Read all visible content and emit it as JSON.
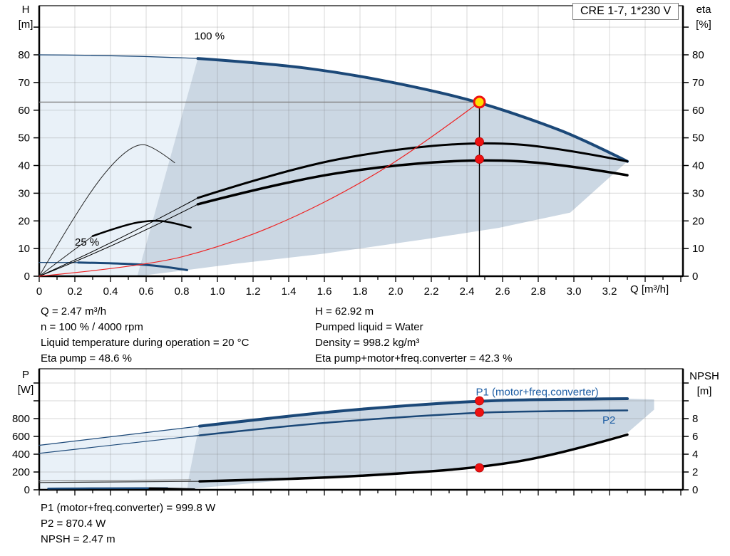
{
  "title": "CRE 1-7, 1*230 V",
  "colors": {
    "blue": "#1b4878",
    "label_blue": "#1f5fa5",
    "red": "#ee1111",
    "duty_fill": "#ffdf00",
    "region_light": "#e9f1f8",
    "region_dark": "#cbd7e3",
    "grid": "rgba(110,110,110,0.22)",
    "ref_gray": "#808080"
  },
  "axes": {
    "top_left": [
      "H",
      "[m]"
    ],
    "top_right": [
      "eta",
      "[%]"
    ],
    "bottom_left": [
      "P",
      "[W]"
    ],
    "bottom_right": [
      "NPSH",
      "[m]"
    ],
    "x_label": "Q [m³/h]"
  },
  "info_top_left": [
    "Q = 2.47 m³/h",
    "n = 100 % / 4000 rpm",
    "Liquid temperature during operation = 20 °C",
    "Eta pump = 48.6 %"
  ],
  "info_top_right": [
    "H = 62.92 m",
    "Pumped liquid = Water",
    "Density = 998.2 kg/m³",
    "Eta pump+motor+freq.converter = 42.3 %"
  ],
  "info_bottom": [
    "P1 (motor+freq.converter) = 999.8 W",
    "P2 = 870.4 W",
    "NPSH = 2.47 m"
  ],
  "chart_data": [
    {
      "type": "line",
      "title": "CRE 1-7, 1*230 V",
      "xlabel": "Q [m³/h]",
      "ylabel_left": "H [m]",
      "ylabel_right": "eta [%]",
      "xlim": [
        0,
        3.6
      ],
      "ylim_left": [
        0,
        97
      ],
      "ylim_right": [
        0,
        97
      ],
      "show_x_labels": true,
      "x_tick_labels": [
        "0",
        "0.2",
        "0.4",
        "0.6",
        "0.8",
        "1.0",
        "1.2",
        "1.4",
        "1.6",
        "1.8",
        "2.0",
        "2.2",
        "2.4",
        "2.6",
        "2.8",
        "3.0",
        "3.2"
      ],
      "left_ticks": [
        [
          0,
          "0"
        ],
        [
          10,
          "10"
        ],
        [
          20,
          "20"
        ],
        [
          30,
          "30"
        ],
        [
          40,
          "40"
        ],
        [
          50,
          "50"
        ],
        [
          60,
          "60"
        ],
        [
          70,
          "70"
        ],
        [
          80,
          "80"
        ],
        [
          90,
          ""
        ]
      ],
      "right_ticks": [
        [
          0,
          "0"
        ],
        [
          10,
          "10"
        ],
        [
          20,
          "20"
        ],
        [
          30,
          "30"
        ],
        [
          40,
          "40"
        ],
        [
          50,
          "50"
        ],
        [
          60,
          "60"
        ],
        [
          70,
          "70"
        ],
        [
          80,
          "80"
        ],
        [
          90,
          ""
        ]
      ],
      "duty_point": {
        "Q": 2.47,
        "H": 62.92,
        "eta_pump": 48.6,
        "eta_total": 42.3,
        "speed_pct": 100,
        "rpm": 4000
      },
      "regions": [
        {
          "name": "envelope-light",
          "color": "#e9f1f8",
          "axis": "left",
          "points": [
            [
              0,
              80
            ],
            [
              0.45,
              79.9
            ],
            [
              0.89,
              78.7
            ],
            [
              0.55,
              0
            ],
            [
              0,
              0
            ]
          ]
        },
        {
          "name": "envelope-dark",
          "color": "#cbd7e3",
          "axis": "left",
          "points": [
            [
              0.89,
              78.7
            ],
            [
              1.3,
              76.8
            ],
            [
              1.7,
              73.5
            ],
            [
              2.1,
              68.6
            ],
            [
              2.47,
              62.92
            ],
            [
              2.8,
              55.8
            ],
            [
              3.05,
              49.5
            ],
            [
              3.3,
              41.5
            ],
            [
              2.98,
              23
            ],
            [
              2.58,
              17.5
            ],
            [
              2.18,
              13.5
            ],
            [
              1.58,
              8
            ],
            [
              1.1,
              4.5
            ],
            [
              0.8,
              2
            ],
            [
              0.55,
              0
            ]
          ]
        }
      ],
      "series": [
        {
          "name": "qh-100-thin",
          "color": "#1b4878",
          "width": 1.3,
          "axis": "left",
          "points": [
            [
              0,
              80
            ],
            [
              0.45,
              79.9
            ],
            [
              0.89,
              78.7
            ]
          ]
        },
        {
          "name": "qh-100",
          "color": "#1b4878",
          "width": 4,
          "axis": "left",
          "points": [
            [
              0.89,
              78.7
            ],
            [
              1.3,
              76.8
            ],
            [
              1.7,
              73.5
            ],
            [
              2.1,
              68.6
            ],
            [
              2.47,
              62.92
            ],
            [
              2.8,
              55.8
            ],
            [
              3.05,
              49.5
            ],
            [
              3.3,
              41.5
            ]
          ]
        },
        {
          "name": "qh-25-thin",
          "color": "#1b4878",
          "width": 1.3,
          "axis": "left",
          "points": [
            [
              0,
              5.0
            ],
            [
              0.22,
              4.95
            ]
          ]
        },
        {
          "name": "qh-25",
          "color": "#1b4878",
          "width": 3,
          "axis": "left",
          "points": [
            [
              0.22,
              4.95
            ],
            [
              0.5,
              4.55
            ],
            [
              0.7,
              3.6
            ],
            [
              0.83,
              2.2
            ]
          ]
        },
        {
          "name": "eta-pump-thin",
          "color": "#000000",
          "width": 1,
          "axis": "right",
          "points": [
            [
              0,
              0
            ],
            [
              0.45,
              13
            ],
            [
              0.89,
              28.3
            ]
          ]
        },
        {
          "name": "eta-pump",
          "color": "#000000",
          "width": 3,
          "axis": "right",
          "points": [
            [
              0.89,
              28.3
            ],
            [
              1.4,
              38.8
            ],
            [
              1.95,
              45.6
            ],
            [
              2.47,
              48.6
            ],
            [
              2.9,
              46.6
            ],
            [
              3.3,
              41.5
            ]
          ]
        },
        {
          "name": "eta-total-thin",
          "color": "#000000",
          "width": 1,
          "axis": "right",
          "points": [
            [
              0,
              0
            ],
            [
              0.45,
              11.5
            ],
            [
              0.89,
              26
            ]
          ]
        },
        {
          "name": "eta-total",
          "color": "#000000",
          "width": 3.5,
          "axis": "right",
          "points": [
            [
              0.89,
              26
            ],
            [
              1.4,
              34.5
            ],
            [
              1.95,
              40
            ],
            [
              2.47,
              42.3
            ],
            [
              2.9,
              40.8
            ],
            [
              3.3,
              36.5
            ]
          ]
        },
        {
          "name": "eta-reduced-thin",
          "color": "#222222",
          "width": 1,
          "axis": "right",
          "points": [
            [
              0,
              0
            ],
            [
              0.18,
              20
            ],
            [
              0.38,
              39
            ],
            [
              0.55,
              48.5
            ],
            [
              0.66,
              46
            ],
            [
              0.76,
              41
            ]
          ]
        },
        {
          "name": "eta-reduced2-thin",
          "color": "#222222",
          "width": 1,
          "axis": "right",
          "points": [
            [
              0,
              0
            ],
            [
              0.12,
              6
            ],
            [
              0.3,
              14.5
            ]
          ]
        },
        {
          "name": "eta-reduced2",
          "color": "#000000",
          "width": 2.5,
          "axis": "right",
          "points": [
            [
              0.3,
              14.5
            ],
            [
              0.48,
              18.6
            ],
            [
              0.63,
              20.3
            ],
            [
              0.74,
              19.6
            ],
            [
              0.85,
              17.6
            ]
          ]
        },
        {
          "name": "speed-curve-red",
          "color": "#ee2222",
          "width": 1.2,
          "axis": "left",
          "points": [
            [
              0,
              0
            ],
            [
              0.6,
              3.7
            ],
            [
              1.0,
              10.3
            ],
            [
              1.4,
              20.2
            ],
            [
              1.8,
              33.4
            ],
            [
              2.15,
              47.6
            ],
            [
              2.47,
              62.92
            ]
          ]
        }
      ],
      "labels": [
        {
          "name": "label-100pct",
          "text": "100 %",
          "q": 0.87,
          "v": 85.5,
          "axis": "left",
          "color": "#000000"
        },
        {
          "name": "label-25pct",
          "text": "25 %",
          "q": 0.2,
          "v": 11.0,
          "axis": "left",
          "color": "#000000"
        }
      ],
      "ref_lines": [
        {
          "type": "h",
          "q1": 0,
          "q2": 2.47,
          "v": 62.92,
          "color": "#808080"
        },
        {
          "type": "v",
          "q": 2.47,
          "v1": 62.92,
          "v2": 0,
          "color": "#000000"
        }
      ],
      "markers": [
        {
          "q": 2.47,
          "v": 62.92,
          "axis": "left",
          "style": "duty"
        },
        {
          "q": 2.47,
          "v": 48.6,
          "axis": "right",
          "style": "dot"
        },
        {
          "q": 2.47,
          "v": 42.3,
          "axis": "right",
          "style": "dot"
        }
      ]
    },
    {
      "type": "line",
      "xlabel": "Q [m³/h]",
      "ylabel_left": "P [W]",
      "ylabel_right": "NPSH [m]",
      "xlim": [
        0,
        3.6
      ],
      "ylim_left": [
        0,
        1360
      ],
      "ylim_right": [
        0,
        13.6
      ],
      "show_x_labels": false,
      "x_tick_labels": [],
      "left_ticks": [
        [
          0,
          "0"
        ],
        [
          200,
          "200"
        ],
        [
          400,
          "400"
        ],
        [
          600,
          "600"
        ],
        [
          800,
          "800"
        ],
        [
          1000,
          ""
        ],
        [
          1200,
          ""
        ]
      ],
      "right_ticks": [
        [
          0,
          "0"
        ],
        [
          2,
          "2"
        ],
        [
          4,
          "4"
        ],
        [
          6,
          "6"
        ],
        [
          8,
          "8"
        ],
        [
          10,
          ""
        ],
        [
          12,
          ""
        ]
      ],
      "duty_point": {
        "Q": 2.47,
        "P1": 999.8,
        "P2": 870.4,
        "NPSH": 2.47
      },
      "regions": [
        {
          "name": "power-envelope-light",
          "color": "#e9f1f8",
          "axis": "left",
          "points": [
            [
              0,
              505
            ],
            [
              0.9,
              712
            ],
            [
              0.88,
              550
            ],
            [
              0.86,
              350
            ],
            [
              0.84,
              150
            ],
            [
              0.83,
              0
            ],
            [
              0,
              0
            ]
          ]
        },
        {
          "name": "power-envelope-dark",
          "color": "#cbd7e3",
          "axis": "left",
          "points": [
            [
              0.9,
              712
            ],
            [
              1.4,
              830
            ],
            [
              1.9,
              925
            ],
            [
              2.47,
              1000
            ],
            [
              2.9,
              1018
            ],
            [
              3.3,
              1024
            ],
            [
              3.45,
              1015
            ],
            [
              3.45,
              900
            ],
            [
              3.3,
              640
            ],
            [
              2.9,
              400
            ],
            [
              2.47,
              250
            ],
            [
              2.0,
              185
            ],
            [
              1.5,
              128
            ],
            [
              1.2,
              75
            ],
            [
              0.9,
              20
            ],
            [
              0.83,
              0
            ],
            [
              0.84,
              150
            ],
            [
              0.86,
              350
            ],
            [
              0.88,
              550
            ]
          ]
        }
      ],
      "series": [
        {
          "name": "p1-thin",
          "color": "#1b4878",
          "width": 1.2,
          "axis": "left",
          "points": [
            [
              0,
              500
            ],
            [
              0.9,
              715
            ]
          ]
        },
        {
          "name": "p1",
          "color": "#1b4878",
          "width": 4,
          "axis": "left",
          "points": [
            [
              0.9,
              715
            ],
            [
              1.4,
              830
            ],
            [
              1.9,
              925
            ],
            [
              2.47,
              999.8
            ],
            [
              2.9,
              1018
            ],
            [
              3.3,
              1024
            ]
          ]
        },
        {
          "name": "p2-thin",
          "color": "#1b4878",
          "width": 1.2,
          "axis": "left",
          "points": [
            [
              0,
              410
            ],
            [
              0.9,
              612
            ]
          ]
        },
        {
          "name": "p2",
          "color": "#1b4878",
          "width": 2.5,
          "axis": "left",
          "points": [
            [
              0.9,
              612
            ],
            [
              1.4,
              720
            ],
            [
              1.9,
              800
            ],
            [
              2.47,
              870.4
            ],
            [
              2.9,
              886
            ],
            [
              3.3,
              892
            ]
          ]
        },
        {
          "name": "p1-25pct",
          "color": "#8a8a8a",
          "width": 1.2,
          "axis": "left",
          "points": [
            [
              0,
              100
            ],
            [
              0.5,
              108
            ],
            [
              0.85,
              112
            ]
          ]
        },
        {
          "name": "p2-25pct-blue",
          "color": "#1b4878",
          "width": 2.5,
          "axis": "left",
          "points": [
            [
              0.05,
              14
            ],
            [
              0.45,
              20
            ],
            [
              0.72,
              18
            ]
          ]
        },
        {
          "name": "p2-25pct-black",
          "color": "#000000",
          "width": 3,
          "axis": "left",
          "points": [
            [
              0.62,
              16
            ],
            [
              0.78,
              10
            ],
            [
              0.87,
              4
            ]
          ]
        },
        {
          "name": "npsh-thin",
          "color": "#333333",
          "width": 1.2,
          "axis": "right",
          "points": [
            [
              0,
              0.82
            ],
            [
              0.5,
              0.88
            ],
            [
              0.9,
              0.95
            ]
          ]
        },
        {
          "name": "npsh",
          "color": "#000000",
          "width": 3.5,
          "axis": "right",
          "points": [
            [
              0.9,
              0.95
            ],
            [
              1.4,
              1.2
            ],
            [
              1.9,
              1.65
            ],
            [
              2.47,
              2.47
            ],
            [
              2.9,
              3.9
            ],
            [
              3.3,
              6.2
            ]
          ]
        }
      ],
      "labels": [
        {
          "name": "label-p1",
          "text": "P1 (motor+freq.converter)",
          "q": 2.45,
          "v": 1060,
          "axis": "left",
          "color": "#1f5fa5"
        },
        {
          "name": "label-p2",
          "text": "P2",
          "q": 3.16,
          "v": 745,
          "axis": "left",
          "color": "#1f5fa5"
        }
      ],
      "ref_lines": [],
      "markers": [
        {
          "q": 2.47,
          "v": 999.8,
          "axis": "left",
          "style": "dot"
        },
        {
          "q": 2.47,
          "v": 870.4,
          "axis": "left",
          "style": "dot"
        },
        {
          "q": 2.47,
          "v": 2.47,
          "axis": "right",
          "style": "dot"
        }
      ]
    }
  ]
}
